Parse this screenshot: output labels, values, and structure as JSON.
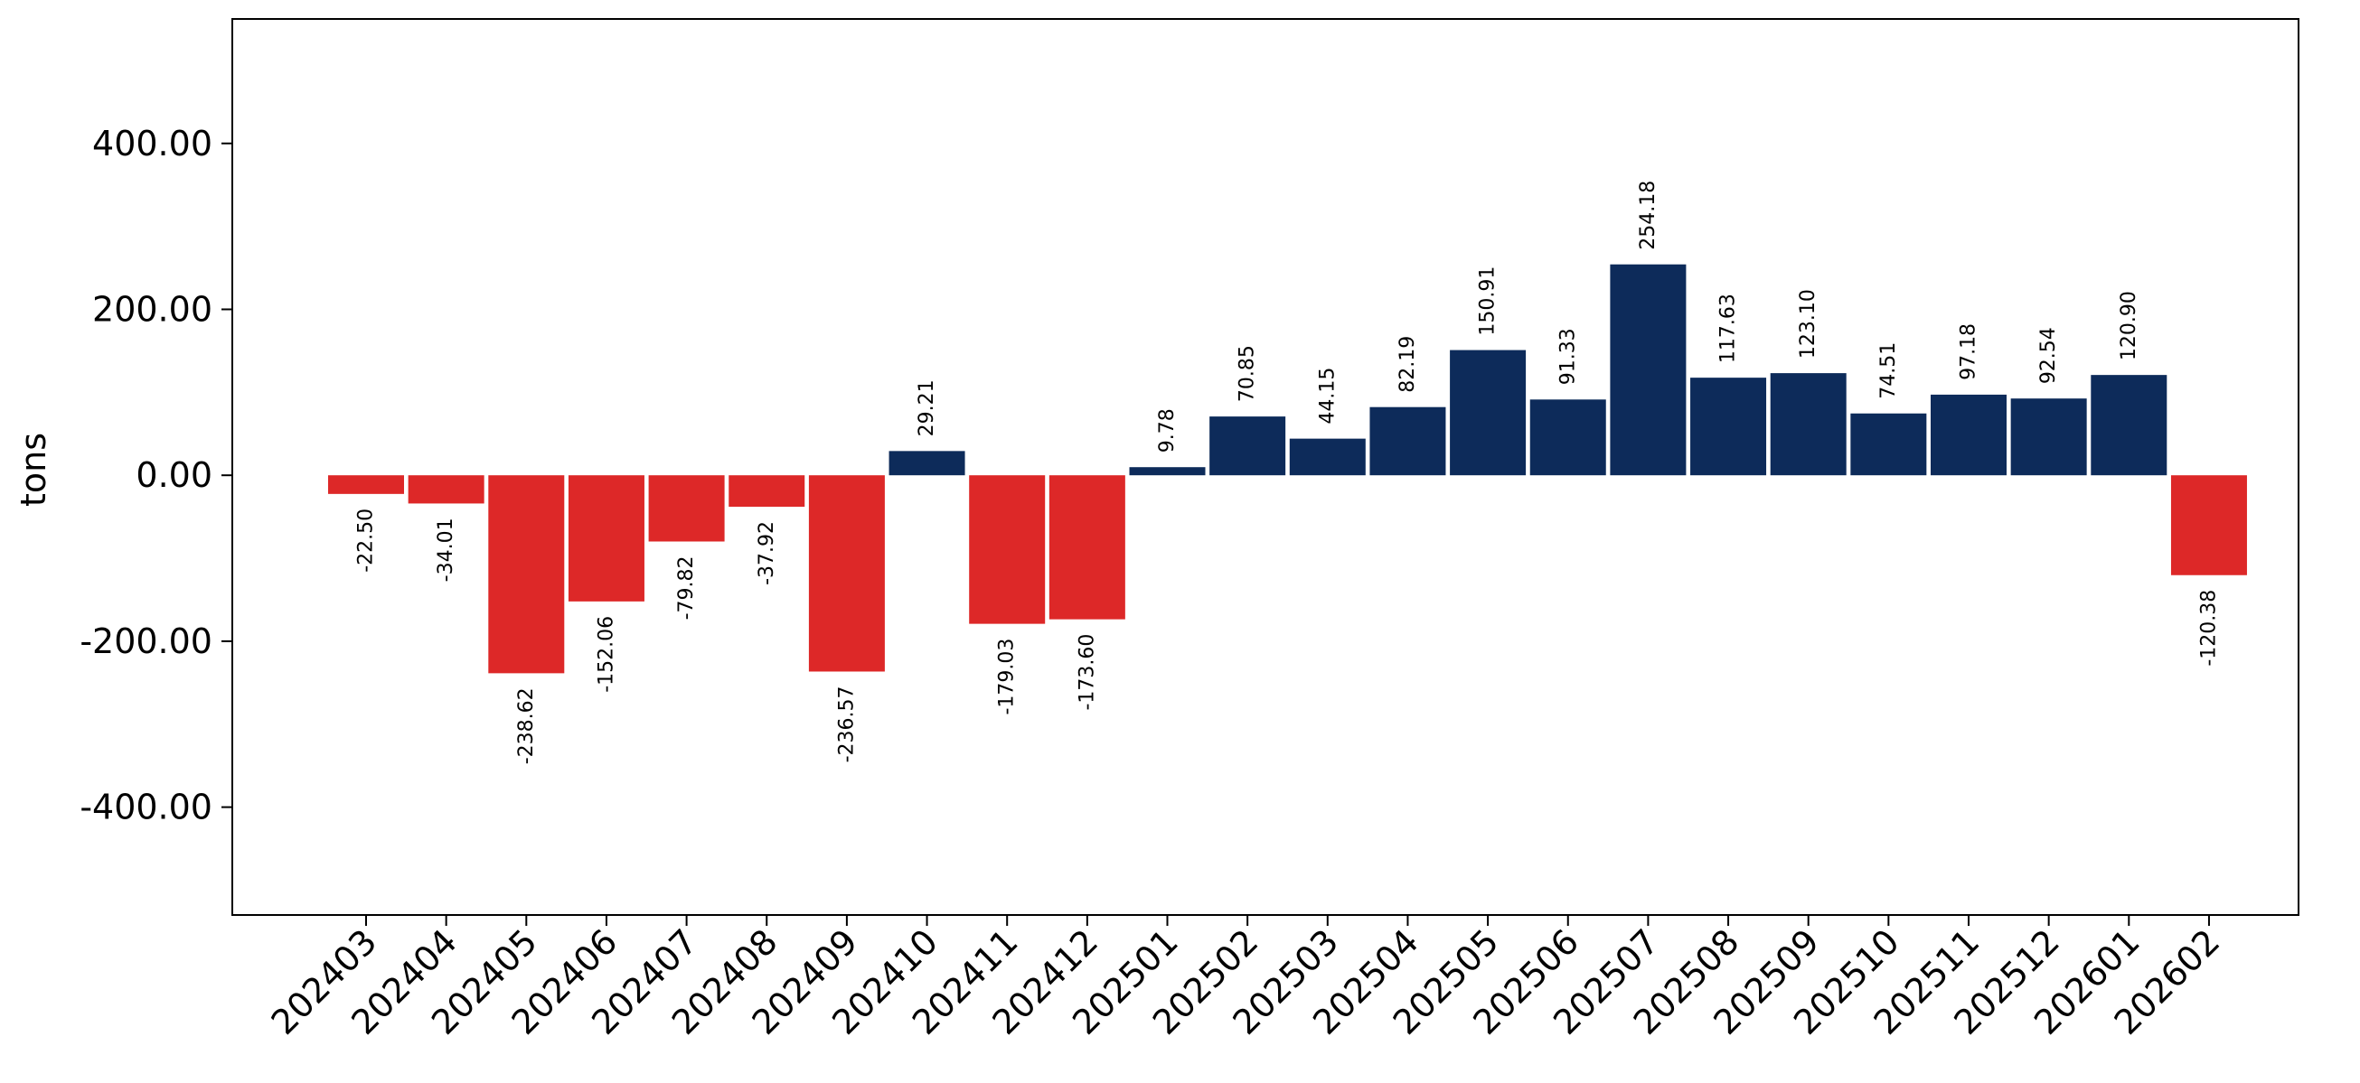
{
  "chart_data": {
    "type": "bar",
    "title": "",
    "xlabel": "",
    "ylabel": "tons",
    "ylim": [
      -530,
      550
    ],
    "y_ticks": [
      "400.00",
      "200.00",
      "0.00",
      "-200.00",
      "-400.00"
    ],
    "y_tick_values": [
      400,
      200,
      0,
      -200,
      -400
    ],
    "categories": [
      "202403",
      "202404",
      "202405",
      "202406",
      "202407",
      "202408",
      "202409",
      "202410",
      "202411",
      "202412",
      "202501",
      "202502",
      "202503",
      "202504",
      "202505",
      "202506",
      "202507",
      "202508",
      "202509",
      "202510",
      "202511",
      "202512",
      "202601",
      "202602"
    ],
    "values": [
      -22.5,
      -34.01,
      -238.62,
      -152.06,
      -79.82,
      -37.92,
      -236.57,
      29.21,
      -179.03,
      -173.6,
      9.78,
      70.85,
      44.15,
      82.19,
      150.91,
      91.33,
      254.18,
      117.63,
      123.1,
      74.51,
      97.18,
      92.54,
      120.9,
      -120.38
    ],
    "value_labels": [
      "-22.50",
      "-34.01",
      "-238.62",
      "-152.06",
      "-79.82",
      "-37.92",
      "-236.57",
      "29.21",
      "-179.03",
      "-173.60",
      "9.78",
      "70.85",
      "44.15",
      "82.19",
      "150.91",
      "91.33",
      "254.18",
      "117.63",
      "123.10",
      "74.51",
      "97.18",
      "92.54",
      "120.90",
      "-120.38"
    ],
    "colors": {
      "positive": "#0d2b5a",
      "negative": "#dd2828"
    },
    "grid": false,
    "legend": "none"
  }
}
